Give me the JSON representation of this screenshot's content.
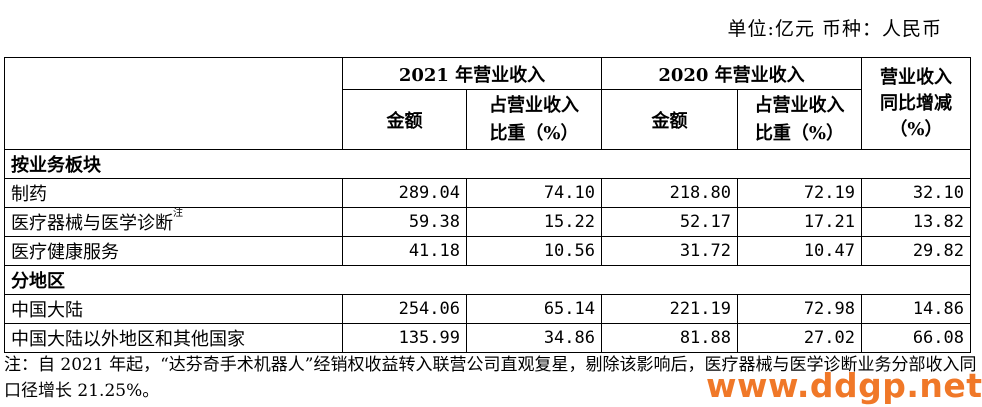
{
  "unit_line": "单位:亿元  币种：人民币",
  "headers": {
    "y2021": "2021 年营业收入",
    "y2020": "2020 年营业收入",
    "growth_l1": "营业收入",
    "growth_l2": "同比增减",
    "growth_l3": "（%）",
    "amount": "金额",
    "share_l1": "占营业收入",
    "share_l2": "比重（%）"
  },
  "sections": {
    "by_segment": "按业务板块",
    "by_region": "分地区"
  },
  "rows": [
    {
      "label": "制药",
      "a2021": "289.04",
      "s2021": "74.10",
      "a2020": "218.80",
      "s2020": "72.19",
      "growth": "32.10"
    },
    {
      "label": "医疗器械与医学诊断",
      "sup": "注",
      "a2021": "59.38",
      "s2021": "15.22",
      "a2020": "52.17",
      "s2020": "17.21",
      "growth": "13.82"
    },
    {
      "label": "医疗健康服务",
      "a2021": "41.18",
      "s2021": "10.56",
      "a2020": "31.72",
      "s2020": "10.47",
      "growth": "29.82"
    },
    {
      "label": "中国大陆",
      "a2021": "254.06",
      "s2021": "65.14",
      "a2020": "221.19",
      "s2020": "72.98",
      "growth": "14.86"
    },
    {
      "label": "中国大陆以外地区和其他国家",
      "a2021": "135.99",
      "s2021": "34.86",
      "a2020": "81.88",
      "s2020": "27.02",
      "growth": "66.08"
    }
  ],
  "note": "注：自 2021 年起，“达芬奇手术机器人”经销权收益转入联营公司直观复星，剔除该影响后，医疗器械与医学诊断业务分部收入同口径增长 21.25%。",
  "watermark": "www.ddgp.net",
  "colors": {
    "watermark": "#f07828"
  }
}
